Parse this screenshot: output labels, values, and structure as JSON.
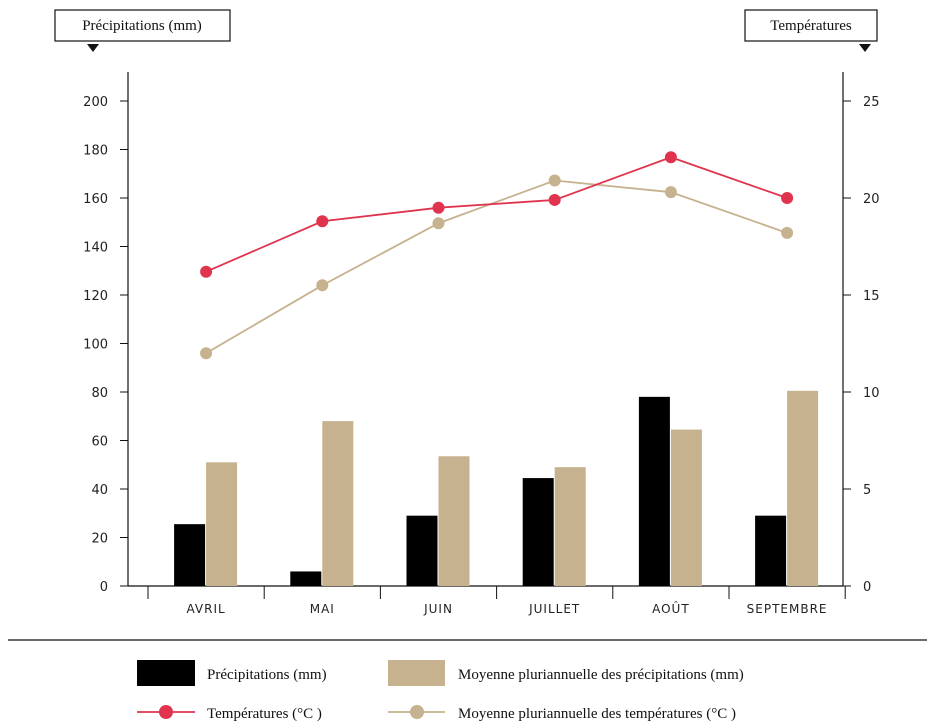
{
  "chart_data": {
    "type": "bar",
    "categories": [
      "AVRIL",
      "MAI",
      "JUIN",
      "JUILLET",
      "AOÛT",
      "SEPTEMBRE"
    ],
    "left_axis": {
      "label": "Précipitations (mm)",
      "ylim": [
        0,
        200
      ],
      "ticks": [
        0,
        20,
        40,
        60,
        80,
        100,
        120,
        140,
        160,
        180,
        200
      ]
    },
    "right_axis": {
      "label": "Températures",
      "ylim": [
        0,
        25
      ],
      "ticks": [
        0,
        5,
        10,
        15,
        20,
        25
      ]
    },
    "series": [
      {
        "name": "Précipitations (mm)",
        "kind": "bar",
        "axis": "left",
        "color": "#000000",
        "values": [
          25.5,
          6,
          29,
          44.5,
          78,
          29
        ]
      },
      {
        "name": "Moyenne pluriannuelle des précipitations (mm)",
        "kind": "bar",
        "axis": "left",
        "color": "#c6b28e",
        "values": [
          51,
          68,
          53.5,
          49,
          64.5,
          80.5
        ]
      },
      {
        "name": "Températures (°C )",
        "kind": "line",
        "axis": "right",
        "color": "#e0344e",
        "values": [
          16.2,
          18.8,
          19.5,
          19.9,
          22.1,
          20.0
        ]
      },
      {
        "name": "Moyenne pluriannuelle des températures (°C )",
        "kind": "line",
        "axis": "right",
        "color": "#c6b28e",
        "values": [
          12.0,
          15.5,
          18.7,
          20.9,
          20.3,
          18.2
        ]
      }
    ],
    "grid": false,
    "legend": "bottom"
  }
}
